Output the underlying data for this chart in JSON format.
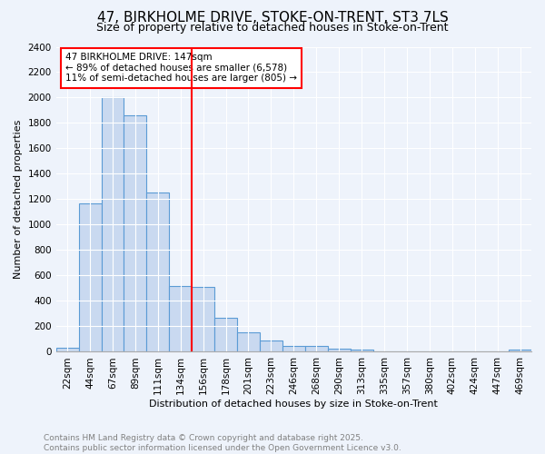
{
  "title1": "47, BIRKHOLME DRIVE, STOKE-ON-TRENT, ST3 7LS",
  "title2": "Size of property relative to detached houses in Stoke-on-Trent",
  "xlabel": "Distribution of detached houses by size in Stoke-on-Trent",
  "ylabel": "Number of detached properties",
  "categories": [
    "22sqm",
    "44sqm",
    "67sqm",
    "89sqm",
    "111sqm",
    "134sqm",
    "156sqm",
    "178sqm",
    "201sqm",
    "223sqm",
    "246sqm",
    "268sqm",
    "290sqm",
    "313sqm",
    "335sqm",
    "357sqm",
    "380sqm",
    "402sqm",
    "424sqm",
    "447sqm",
    "469sqm"
  ],
  "values": [
    30,
    1170,
    2000,
    1860,
    1250,
    520,
    510,
    270,
    155,
    90,
    45,
    45,
    25,
    20,
    0,
    5,
    5,
    0,
    5,
    5,
    20
  ],
  "bar_color": "#c9d9f0",
  "bar_edge_color": "#5b9bd5",
  "vline_x": 6.0,
  "vline_color": "red",
  "annotation_text": "47 BIRKHOLME DRIVE: 147sqm\n← 89% of detached houses are smaller (6,578)\n11% of semi-detached houses are larger (805) →",
  "annotation_box_color": "white",
  "annotation_box_edge_color": "red",
  "ylim": [
    0,
    2400
  ],
  "yticks": [
    0,
    200,
    400,
    600,
    800,
    1000,
    1200,
    1400,
    1600,
    1800,
    2000,
    2200,
    2400
  ],
  "background_color": "#eef3fb",
  "footer_text": "Contains HM Land Registry data © Crown copyright and database right 2025.\nContains public sector information licensed under the Open Government Licence v3.0.",
  "title_fontsize": 11,
  "subtitle_fontsize": 9,
  "axis_label_fontsize": 8,
  "tick_fontsize": 7.5,
  "annotation_fontsize": 7.5,
  "footer_fontsize": 6.5
}
